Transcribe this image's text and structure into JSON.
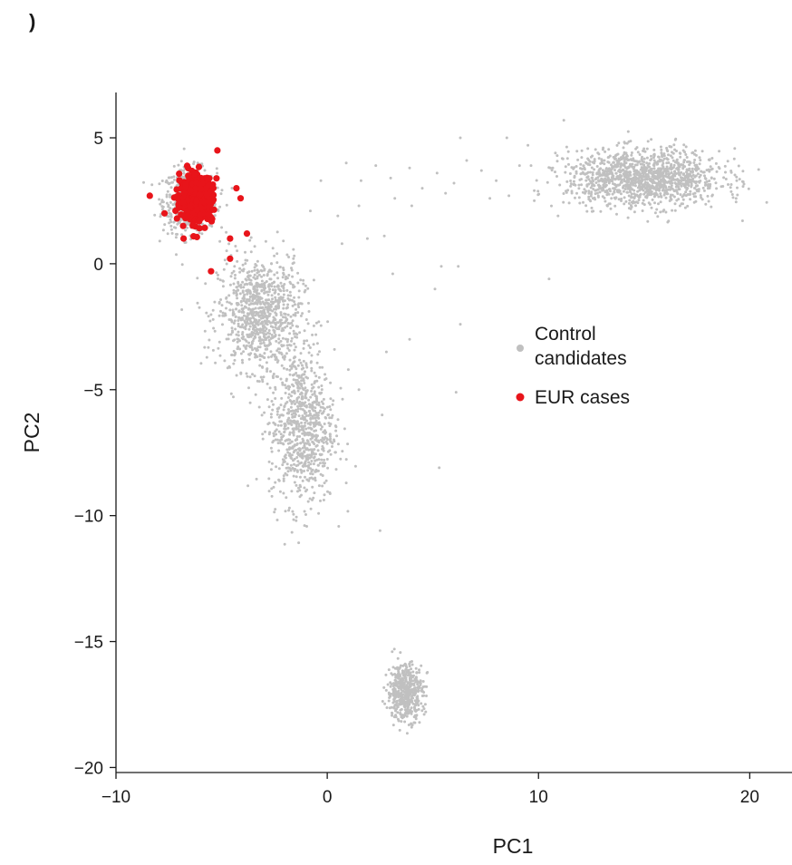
{
  "panel_label": ")",
  "chart_data": {
    "type": "scatter",
    "xlabel": "PC1",
    "ylabel": "PC2",
    "xlim": [
      -10,
      22
    ],
    "ylim": [
      -20.2,
      6.8
    ],
    "xticks": [
      -10,
      0,
      10,
      20
    ],
    "xtick_labels": [
      "−10",
      "0",
      "10",
      "20"
    ],
    "yticks": [
      5,
      0,
      -5,
      -10,
      -15,
      -20
    ],
    "ytick_labels": [
      "5",
      "0",
      "−5",
      "−10",
      "−15",
      "−20"
    ],
    "grid": false,
    "legend_position": "center-right",
    "series": [
      {
        "name": "Control candidates",
        "label_lines": [
          "Control",
          "candidates"
        ],
        "color": "#c0c0c0",
        "marker": "small-dot",
        "clusters": [
          {
            "center": [
              -6.5,
              2.5
            ],
            "spread": [
              0.9,
              0.9
            ],
            "count": 650
          },
          {
            "center": [
              -3.2,
              -2.0
            ],
            "spread": [
              1.4,
              1.6
            ],
            "count": 900
          },
          {
            "center": [
              -1.2,
              -6.5
            ],
            "spread": [
              1.1,
              2.2
            ],
            "count": 800
          },
          {
            "center": [
              15.0,
              3.4
            ],
            "spread": [
              2.6,
              0.8
            ],
            "count": 1300
          },
          {
            "center": [
              3.7,
              -17.0
            ],
            "spread": [
              0.6,
              0.8
            ],
            "count": 500
          }
        ],
        "points": [
          [
            -0.3,
            3.3
          ],
          [
            0.9,
            4.0
          ],
          [
            1.6,
            3.3
          ],
          [
            2.3,
            3.9
          ],
          [
            3.0,
            3.4
          ],
          [
            3.9,
            3.8
          ],
          [
            4.5,
            3.0
          ],
          [
            5.2,
            3.6
          ],
          [
            6.0,
            3.2
          ],
          [
            6.6,
            4.1
          ],
          [
            7.3,
            3.7
          ],
          [
            8.0,
            3.3
          ],
          [
            9.1,
            3.9
          ],
          [
            9.5,
            4.7
          ],
          [
            10.8,
            4.4
          ],
          [
            6.3,
            5.0
          ],
          [
            8.5,
            5.0
          ],
          [
            11.2,
            5.7
          ],
          [
            4.0,
            2.3
          ],
          [
            5.6,
            2.8
          ],
          [
            7.7,
            2.6
          ],
          [
            8.6,
            2.7
          ],
          [
            9.8,
            2.5
          ],
          [
            3.2,
            2.6
          ],
          [
            -0.8,
            2.1
          ],
          [
            0.5,
            1.9
          ],
          [
            1.5,
            2.3
          ],
          [
            2.7,
            1.1
          ],
          [
            1.9,
            1.0
          ],
          [
            0.7,
            0.8
          ],
          [
            -1.6,
            0.2
          ],
          [
            3.1,
            -0.4
          ],
          [
            5.4,
            -0.1
          ],
          [
            6.2,
            -0.1
          ],
          [
            5.1,
            -1.0
          ],
          [
            10.5,
            -0.6
          ],
          [
            6.3,
            -2.4
          ],
          [
            3.9,
            -3.0
          ],
          [
            2.8,
            -3.5
          ],
          [
            6.1,
            -5.1
          ],
          [
            2.6,
            -6.0
          ],
          [
            5.3,
            -8.1
          ],
          [
            2.5,
            -10.6
          ],
          [
            1.0,
            -4.2
          ],
          [
            1.5,
            -5.0
          ],
          [
            0.9,
            -8.7
          ]
        ]
      },
      {
        "name": "EUR cases",
        "label_lines": [
          "EUR cases"
        ],
        "color": "#e8141a",
        "marker": "dot",
        "clusters": [
          {
            "center": [
              -6.2,
              2.6
            ],
            "spread": [
              0.55,
              0.65
            ],
            "count": 420
          }
        ],
        "points": [
          [
            -8.4,
            2.7
          ],
          [
            -5.5,
            -0.3
          ],
          [
            -4.6,
            0.2
          ],
          [
            -3.8,
            1.2
          ],
          [
            -4.1,
            2.6
          ],
          [
            -5.2,
            4.5
          ],
          [
            -7.7,
            2.0
          ],
          [
            -6.8,
            1.0
          ],
          [
            -4.6,
            1.0
          ],
          [
            -4.3,
            3.0
          ]
        ]
      }
    ]
  }
}
